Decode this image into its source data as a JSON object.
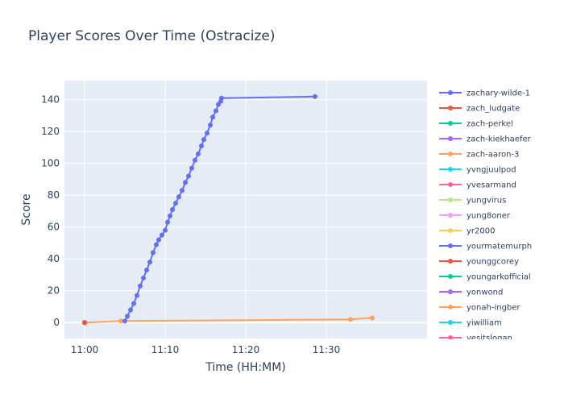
{
  "chart_data": {
    "type": "line",
    "title": "Player Scores Over Time (Ostracize)",
    "xlabel": "Time (HH:MM)",
    "ylabel": "Score",
    "x_ticks": [
      "11:00",
      "11:10",
      "11:20",
      "11:30"
    ],
    "x_tick_minutes": [
      0,
      10,
      20,
      30
    ],
    "xlim_minutes": [
      -2.5,
      42.5
    ],
    "ylim": [
      -10,
      152
    ],
    "y_ticks": [
      0,
      20,
      40,
      60,
      80,
      100,
      120,
      140
    ],
    "grid": true,
    "legend_position": "right",
    "series": [
      {
        "name": "zachary-wilde-1",
        "color": "#636efa",
        "x_minutes": [
          5.0,
          5.3,
          5.7,
          6.1,
          6.5,
          6.9,
          7.3,
          7.7,
          8.1,
          8.5,
          8.9,
          9.2,
          9.6,
          10.0,
          10.3,
          10.6,
          10.9,
          11.3,
          11.7,
          12.1,
          12.5,
          12.9,
          13.3,
          13.7,
          14.1,
          14.5,
          14.8,
          15.2,
          15.6,
          15.9,
          16.3,
          16.6,
          16.9,
          17.0,
          28.6
        ],
        "y": [
          1,
          4,
          8,
          12,
          17,
          23,
          28,
          33,
          38,
          44,
          49,
          52,
          55,
          58,
          63,
          67,
          71,
          75,
          79,
          83,
          88,
          92,
          97,
          102,
          106,
          111,
          115,
          119,
          124,
          129,
          133,
          137,
          139,
          141,
          142
        ]
      },
      {
        "name": "zach_ludgate",
        "color": "#EF553B",
        "x_minutes": [
          0
        ],
        "y": [
          0
        ]
      },
      {
        "name": "zach-perkel",
        "color": "#00cc96",
        "x_minutes": [
          0
        ],
        "y": [
          0
        ]
      },
      {
        "name": "zach-kiekhaefer",
        "color": "#ab63fa",
        "x_minutes": [
          0
        ],
        "y": [
          0
        ]
      },
      {
        "name": "zach-aaron-3",
        "color": "#FFA15A",
        "x_minutes": [
          0.0,
          4.5,
          33.0,
          35.7
        ],
        "y": [
          0,
          1,
          2,
          3
        ]
      },
      {
        "name": "yvngjuulpod",
        "color": "#19d3f3",
        "x_minutes": [
          0
        ],
        "y": [
          0
        ]
      },
      {
        "name": "yvesarmand",
        "color": "#FF6692",
        "x_minutes": [
          0
        ],
        "y": [
          0
        ]
      },
      {
        "name": "yungvirus",
        "color": "#B6E880",
        "x_minutes": [
          0
        ],
        "y": [
          0
        ]
      },
      {
        "name": "yung8oner",
        "color": "#FF97FF",
        "x_minutes": [
          0
        ],
        "y": [
          0
        ]
      },
      {
        "name": "yr2000",
        "color": "#FECB52",
        "x_minutes": [
          0
        ],
        "y": [
          0
        ]
      },
      {
        "name": "yourmatemurph",
        "color": "#636efa",
        "x_minutes": [
          0
        ],
        "y": [
          0
        ]
      },
      {
        "name": "younggcorey",
        "color": "#EF553B",
        "x_minutes": [
          0
        ],
        "y": [
          0
        ]
      },
      {
        "name": "youngarkofficial",
        "color": "#00cc96",
        "x_minutes": [
          0
        ],
        "y": [
          0
        ]
      },
      {
        "name": "yonwond",
        "color": "#ab63fa",
        "x_minutes": [
          0
        ],
        "y": [
          0
        ]
      },
      {
        "name": "yonah-ingber",
        "color": "#FFA15A",
        "x_minutes": [
          0
        ],
        "y": [
          0
        ]
      },
      {
        "name": "yiwilliam",
        "color": "#19d3f3",
        "x_minutes": [
          0
        ],
        "y": [
          0
        ]
      },
      {
        "name": "yesitslogan",
        "color": "#FF6692",
        "x_minutes": [
          0
        ],
        "y": [
          0
        ]
      }
    ]
  }
}
